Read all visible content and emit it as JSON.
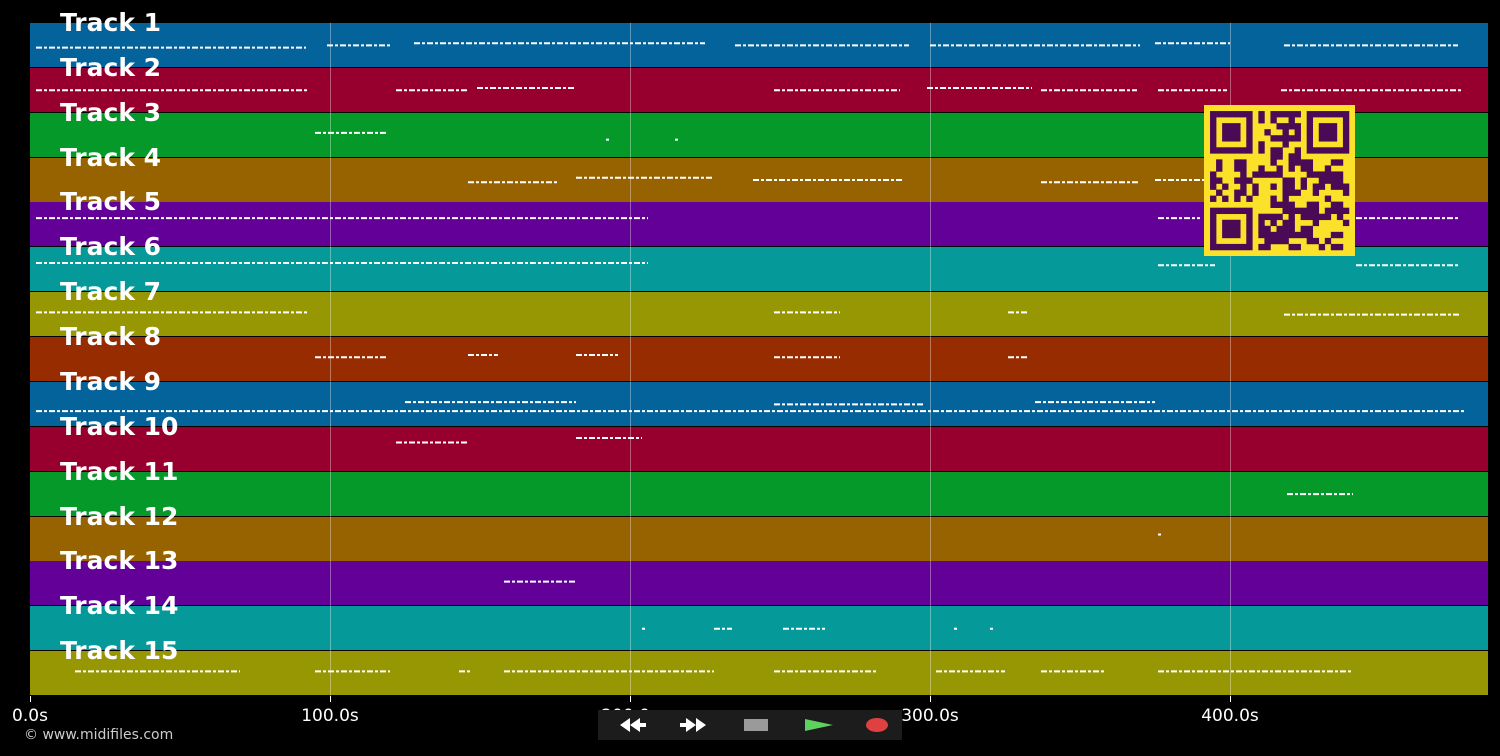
{
  "tracks": [
    {
      "label": "Track 1",
      "color": "#04639a"
    },
    {
      "label": "Track 2",
      "color": "#97002e"
    },
    {
      "label": "Track 3",
      "color": "#05992a"
    },
    {
      "label": "Track 4",
      "color": "#976200"
    },
    {
      "label": "Track 5",
      "color": "#620097"
    },
    {
      "label": "Track 6",
      "color": "#059999"
    },
    {
      "label": "Track 7",
      "color": "#979704"
    },
    {
      "label": "Track 8",
      "color": "#972c00"
    },
    {
      "label": "Track 9",
      "color": "#04639a"
    },
    {
      "label": "Track 10",
      "color": "#97002e"
    },
    {
      "label": "Track 11",
      "color": "#05992a"
    },
    {
      "label": "Track 12",
      "color": "#976200"
    },
    {
      "label": "Track 13",
      "color": "#620097"
    },
    {
      "label": "Track 14",
      "color": "#059999"
    },
    {
      "label": "Track 15",
      "color": "#979704"
    }
  ],
  "timeline": {
    "max_seconds": 486,
    "ticks": [
      {
        "value": 0,
        "label": "0.0s"
      },
      {
        "value": 100,
        "label": "100.0s"
      },
      {
        "value": 200,
        "label": "200.0s"
      },
      {
        "value": 300,
        "label": "300.0s"
      },
      {
        "value": 400,
        "label": "400.0s"
      }
    ]
  },
  "copyright": "© www.midifiles.com",
  "transport": {
    "buttons": [
      {
        "name": "rewind-button",
        "icon": "rewind-icon",
        "color": "#000000"
      },
      {
        "name": "fast-forward-button",
        "icon": "fast-forward-icon",
        "color": "#000000"
      },
      {
        "name": "stop-button",
        "icon": "stop-icon",
        "color": "#3a3a3a"
      },
      {
        "name": "play-button",
        "icon": "play-icon",
        "color": "#1f5a1f"
      },
      {
        "name": "record-button",
        "icon": "record-icon",
        "color": "#5a1a1a"
      }
    ]
  },
  "qr_code": {
    "icon": "qr-code-icon",
    "color": "#fbe12a"
  },
  "note_segments": [
    {
      "track": 0,
      "spans": [
        [
          2,
          92,
          0.55
        ],
        [
          99,
          120,
          0.5
        ],
        [
          128,
          225,
          0.45
        ],
        [
          235,
          293,
          0.5
        ],
        [
          300,
          370,
          0.5
        ],
        [
          375,
          400,
          0.45
        ],
        [
          418,
          476,
          0.5
        ]
      ]
    },
    {
      "track": 1,
      "spans": [
        [
          2,
          93,
          0.5
        ],
        [
          122,
          146,
          0.5
        ],
        [
          149,
          182,
          0.45
        ],
        [
          248,
          290,
          0.5
        ],
        [
          299,
          334,
          0.45
        ],
        [
          337,
          369,
          0.5
        ],
        [
          376,
          399,
          0.5
        ],
        [
          417,
          477,
          0.5
        ]
      ]
    },
    {
      "track": 2,
      "spans": [
        [
          95,
          119,
          0.45
        ],
        [
          192,
          193,
          0.6
        ],
        [
          215,
          216,
          0.6
        ]
      ]
    },
    {
      "track": 3,
      "spans": [
        [
          146,
          176,
          0.55
        ],
        [
          182,
          228,
          0.45
        ],
        [
          241,
          291,
          0.5
        ],
        [
          337,
          370,
          0.55
        ],
        [
          375,
          400,
          0.5
        ]
      ]
    },
    {
      "track": 4,
      "spans": [
        [
          2,
          206,
          0.35
        ],
        [
          376,
          390,
          0.35
        ],
        [
          442,
          476,
          0.35
        ]
      ]
    },
    {
      "track": 5,
      "spans": [
        [
          2,
          206,
          0.35
        ],
        [
          376,
          395,
          0.4
        ],
        [
          442,
          476,
          0.4
        ]
      ]
    },
    {
      "track": 6,
      "spans": [
        [
          2,
          93,
          0.45
        ],
        [
          248,
          270,
          0.45
        ],
        [
          326,
          333,
          0.45
        ],
        [
          418,
          477,
          0.5
        ]
      ]
    },
    {
      "track": 7,
      "spans": [
        [
          95,
          119,
          0.45
        ],
        [
          146,
          156,
          0.4
        ],
        [
          182,
          196,
          0.4
        ],
        [
          248,
          270,
          0.45
        ],
        [
          326,
          333,
          0.45
        ]
      ]
    },
    {
      "track": 8,
      "spans": [
        [
          2,
          478,
          0.65
        ],
        [
          125,
          182,
          0.45
        ],
        [
          248,
          298,
          0.5
        ],
        [
          335,
          375,
          0.45
        ]
      ]
    },
    {
      "track": 9,
      "spans": [
        [
          122,
          146,
          0.35
        ],
        [
          182,
          204,
          0.25
        ]
      ]
    },
    {
      "track": 10,
      "spans": [
        [
          419,
          441,
          0.5
        ]
      ]
    },
    {
      "track": 11,
      "spans": [
        [
          376,
          377,
          0.4
        ]
      ]
    },
    {
      "track": 12,
      "spans": [
        [
          158,
          182,
          0.45
        ]
      ]
    },
    {
      "track": 13,
      "spans": [
        [
          204,
          205,
          0.5
        ],
        [
          228,
          234,
          0.5
        ],
        [
          251,
          265,
          0.5
        ],
        [
          308,
          309,
          0.5
        ],
        [
          320,
          321,
          0.5
        ]
      ]
    },
    {
      "track": 14,
      "spans": [
        [
          15,
          70,
          0.45
        ],
        [
          95,
          120,
          0.45
        ],
        [
          143,
          147,
          0.45
        ],
        [
          158,
          228,
          0.45
        ],
        [
          248,
          282,
          0.45
        ],
        [
          302,
          325,
          0.45
        ],
        [
          337,
          358,
          0.45
        ],
        [
          376,
          441,
          0.45
        ]
      ]
    }
  ]
}
